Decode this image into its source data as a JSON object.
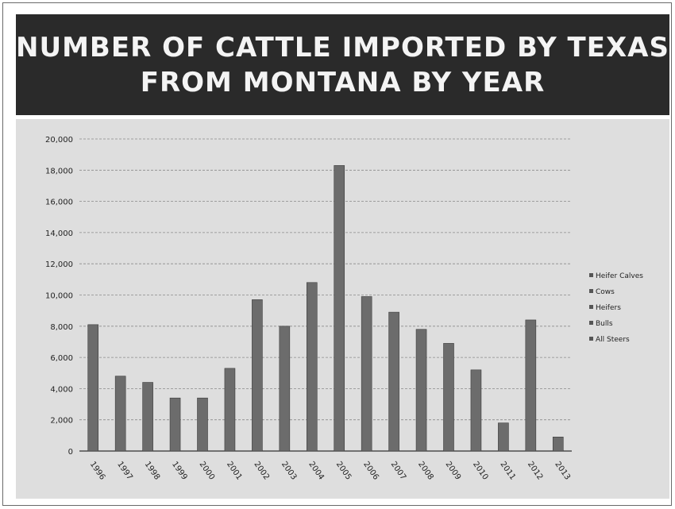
{
  "chart_data": {
    "type": "bar",
    "title_lines": [
      "NUMBER OF CATTLE IMPORTED BY TEXAS",
      "FROM MONTANA BY YEAR"
    ],
    "categories": [
      "1996",
      "1997",
      "1998",
      "1999",
      "2000",
      "2001",
      "2002",
      "2003",
      "2004",
      "2005",
      "2006",
      "2007",
      "2008",
      "2009",
      "2010",
      "2011",
      "2012",
      "2013"
    ],
    "values": [
      8100,
      4800,
      4400,
      3400,
      3400,
      5300,
      9700,
      8000,
      10800,
      18300,
      9900,
      8900,
      7800,
      6900,
      5200,
      1800,
      8400,
      900
    ],
    "ylim": [
      0,
      20000
    ],
    "yticks": [
      "0",
      "2,000",
      "4,000",
      "6,000",
      "8,000",
      "10,000",
      "12,000",
      "14,000",
      "16,000",
      "18,000",
      "20,000"
    ],
    "grid": true,
    "legend_position": "right",
    "legend": [
      "Heifer Calves",
      "Cows",
      "Heifers",
      "Bulls",
      "All Steers"
    ],
    "colors": {
      "bar": "#6c6c6c",
      "grid": "#8a8a8a",
      "axis": "#333333",
      "title_bg": "#2a2a2a",
      "panel_bg": "#dedede"
    }
  }
}
